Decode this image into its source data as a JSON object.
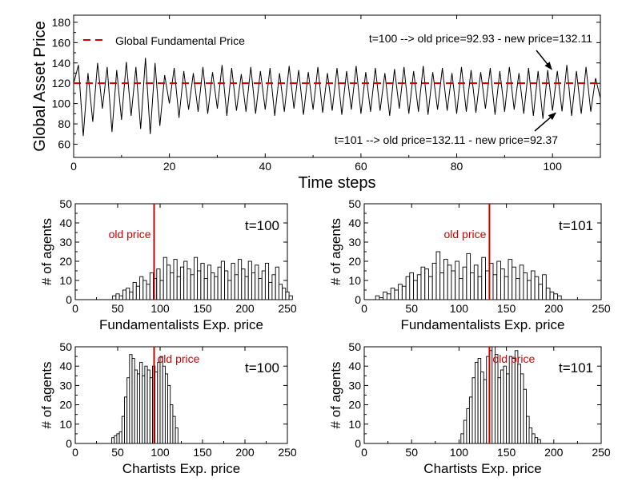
{
  "chart_data": [
    {
      "type": "line",
      "id": "top",
      "title": "",
      "xlabel": "Time steps",
      "ylabel": "Global Asset Price",
      "xlim": [
        0,
        110
      ],
      "ylim": [
        47,
        187
      ],
      "xticks": [
        0,
        20,
        40,
        60,
        80,
        100
      ],
      "yticks": [
        60,
        80,
        100,
        120,
        140,
        160,
        180
      ],
      "fundamental_price": 120,
      "legend": {
        "label": "Global Fundamental Price",
        "placement": "top-left"
      },
      "annotations": [
        {
          "text": "t=100 --> old price=92.93 - new price=132.11",
          "points_to": [
            100,
            132.11
          ]
        },
        {
          "text": "t=101 --> old price=132.11 - new price=92.37",
          "points_to": [
            101,
            92.37
          ]
        }
      ],
      "series": [
        {
          "name": "Global Asset Price",
          "x": [
            0,
            1,
            2,
            3,
            4,
            5,
            6,
            7,
            8,
            9,
            10,
            11,
            12,
            13,
            14,
            15,
            16,
            17,
            18,
            19,
            20,
            21,
            22,
            23,
            24,
            25,
            26,
            27,
            28,
            29,
            30,
            31,
            32,
            33,
            34,
            35,
            36,
            37,
            38,
            39,
            40,
            41,
            42,
            43,
            44,
            45,
            46,
            47,
            48,
            49,
            50,
            51,
            52,
            53,
            54,
            55,
            56,
            57,
            58,
            59,
            60,
            61,
            62,
            63,
            64,
            65,
            66,
            67,
            68,
            69,
            70,
            71,
            72,
            73,
            74,
            75,
            76,
            77,
            78,
            79,
            80,
            81,
            82,
            83,
            84,
            85,
            86,
            87,
            88,
            89,
            90,
            91,
            92,
            93,
            94,
            95,
            96,
            97,
            98,
            99,
            100,
            101,
            102,
            103,
            104,
            105,
            106,
            107,
            108,
            109,
            110
          ],
          "values": [
            120,
            138,
            68,
            130,
            82,
            140,
            95,
            136,
            72,
            133,
            84,
            141,
            88,
            136,
            75,
            145,
            70,
            140,
            78,
            128,
            100,
            135,
            86,
            132,
            94,
            130,
            92,
            136,
            90,
            131,
            95,
            138,
            88,
            135,
            93,
            129,
            92,
            136,
            90,
            132,
            94,
            135,
            88,
            130,
            92,
            137,
            95,
            133,
            89,
            131,
            94,
            136,
            91,
            130,
            93,
            135,
            89,
            132,
            94,
            137,
            90,
            131,
            92,
            135,
            93,
            130,
            88,
            134,
            95,
            136,
            90,
            132,
            92,
            137,
            89,
            131,
            94,
            135,
            93,
            130,
            90,
            136,
            92,
            133,
            91,
            131,
            95,
            135,
            89,
            132,
            92,
            136,
            94,
            130,
            90,
            135,
            88,
            132,
            85,
            133,
            92.93,
            132.11,
            92.37,
            138,
            88,
            132,
            90,
            136,
            92,
            125,
            105
          ]
        }
      ]
    },
    {
      "type": "bar",
      "id": "fund_t100",
      "title": "t=100",
      "xlabel": "Fundamentalists Exp. price",
      "ylabel": "# of agents",
      "xlim": [
        0,
        250
      ],
      "ylim": [
        0,
        50
      ],
      "xticks": [
        0,
        50,
        100,
        150,
        200,
        250
      ],
      "yticks": [
        0,
        10,
        20,
        30,
        40,
        50
      ],
      "marker": {
        "label": "old price",
        "x": 92.93
      },
      "bin_start": 44,
      "bin_width": 4,
      "values": [
        2,
        3,
        2,
        5,
        6,
        4,
        9,
        7,
        12,
        10,
        8,
        14,
        11,
        16,
        10,
        22,
        18,
        14,
        21,
        12,
        17,
        20,
        16,
        13,
        22,
        15,
        19,
        11,
        18,
        14,
        12,
        17,
        20,
        15,
        10,
        19,
        13,
        21,
        16,
        12,
        20,
        14,
        18,
        11,
        15,
        19,
        9,
        13,
        17,
        8,
        6,
        4,
        2
      ]
    },
    {
      "type": "bar",
      "id": "fund_t101",
      "title": "t=101",
      "xlabel": "Fundamentalists Exp. price",
      "ylabel": "# of agents",
      "xlim": [
        0,
        250
      ],
      "ylim": [
        0,
        50
      ],
      "xticks": [
        0,
        50,
        100,
        150,
        200,
        250
      ],
      "yticks": [
        0,
        10,
        20,
        30,
        40,
        50
      ],
      "marker": {
        "label": "old price",
        "x": 132.11
      },
      "bin_start": 12,
      "bin_width": 4,
      "values": [
        2,
        1,
        4,
        3,
        6,
        5,
        8,
        7,
        12,
        14,
        10,
        13,
        17,
        16,
        12,
        19,
        25,
        14,
        21,
        18,
        15,
        20,
        11,
        17,
        24,
        14,
        18,
        12,
        22,
        15,
        19,
        13,
        20,
        16,
        12,
        21,
        17,
        11,
        18,
        14,
        10,
        15,
        12,
        8,
        13,
        6,
        4,
        3,
        2
      ]
    },
    {
      "type": "bar",
      "id": "chart_t100",
      "title": "t=100",
      "xlabel": "Chartists Exp. price",
      "ylabel": "# of agents",
      "xlim": [
        0,
        250
      ],
      "ylim": [
        0,
        50
      ],
      "xticks": [
        0,
        50,
        100,
        150,
        200,
        250
      ],
      "yticks": [
        0,
        10,
        20,
        30,
        40,
        50
      ],
      "marker": {
        "label": "old price",
        "x": 92.93
      },
      "bin_start": 43,
      "bin_width": 3,
      "values": [
        3,
        4,
        5,
        6,
        14,
        24,
        34,
        46,
        44,
        38,
        36,
        42,
        35,
        40,
        38,
        34,
        40,
        37,
        42,
        45,
        40,
        36,
        30,
        20,
        14,
        8
      ]
    },
    {
      "type": "bar",
      "id": "chart_t101",
      "title": "t=101",
      "xlabel": "Chartists Exp. price",
      "ylabel": "# of agents",
      "xlim": [
        0,
        250
      ],
      "ylim": [
        0,
        50
      ],
      "xticks": [
        0,
        50,
        100,
        150,
        200,
        250
      ],
      "yticks": [
        0,
        10,
        20,
        30,
        40,
        50
      ],
      "marker": {
        "label": "old price",
        "x": 132.11
      },
      "bin_start": 102,
      "bin_width": 3,
      "values": [
        5,
        12,
        18,
        24,
        34,
        42,
        44,
        37,
        33,
        45,
        48,
        50,
        46,
        34,
        38,
        40,
        36,
        45,
        44,
        48,
        41,
        36,
        28,
        14,
        8,
        5,
        3,
        2
      ]
    }
  ]
}
